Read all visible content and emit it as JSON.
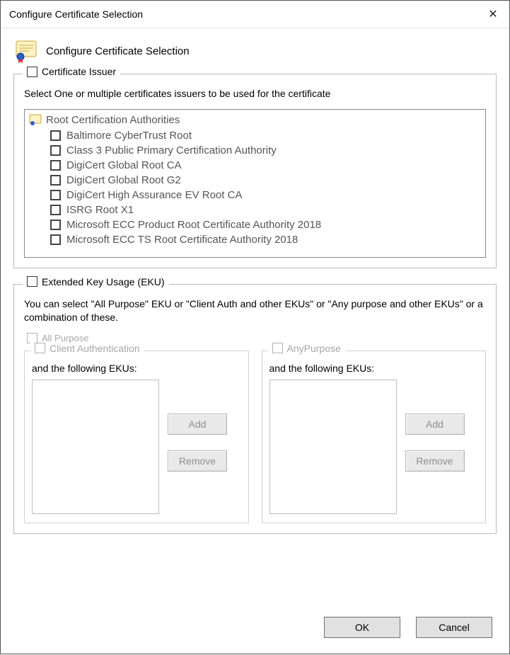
{
  "window": {
    "title": "Configure Certificate Selection",
    "close_glyph": "✕"
  },
  "header": {
    "title": "Configure Certificate Selection"
  },
  "issuer": {
    "legend": "Certificate Issuer",
    "description": "Select One or multiple certificates issuers to be used for the certificate",
    "root_label": "Root Certification Authorities",
    "items": [
      {
        "label": "Baltimore CyberTrust Root"
      },
      {
        "label": "Class 3 Public Primary Certification Authority"
      },
      {
        "label": "DigiCert Global Root CA"
      },
      {
        "label": "DigiCert Global Root G2"
      },
      {
        "label": "DigiCert High Assurance EV Root CA"
      },
      {
        "label": "ISRG Root X1"
      },
      {
        "label": "Microsoft ECC Product Root Certificate Authority 2018"
      },
      {
        "label": "Microsoft ECC TS Root Certificate Authority 2018"
      }
    ]
  },
  "eku": {
    "legend": "Extended Key Usage (EKU)",
    "description": "You can select \"All Purpose\" EKU or \"Client Auth and other EKUs\" or \"Any purpose and other EKUs\" or a combination of these.",
    "all_purpose_label": "All Purpose",
    "client": {
      "legend": "Client Authentication",
      "following_label": "and the following EKUs:",
      "add_label": "Add",
      "remove_label": "Remove"
    },
    "any": {
      "legend": "AnyPurpose",
      "following_label": "and the following EKUs:",
      "add_label": "Add",
      "remove_label": "Remove"
    }
  },
  "footer": {
    "ok_label": "OK",
    "cancel_label": "Cancel"
  },
  "colors": {
    "disabled_text": "#a7a7a7",
    "border": "#b9b9b9",
    "button_bg": "#e1e1e1"
  }
}
